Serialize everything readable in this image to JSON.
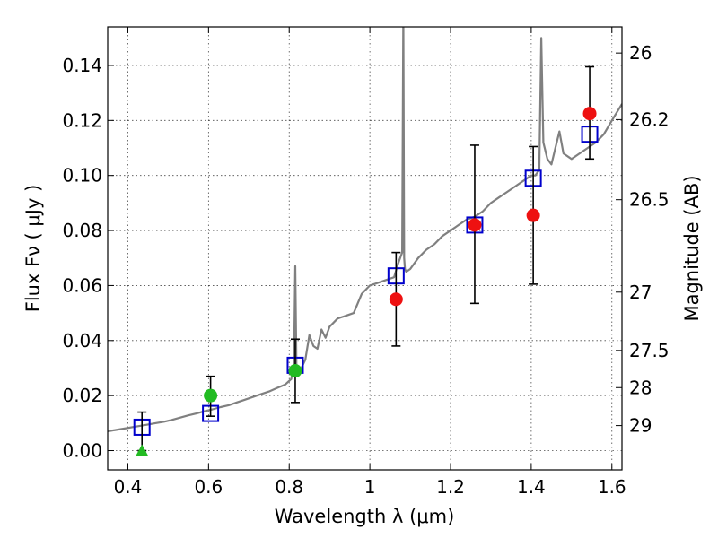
{
  "chart_data": {
    "type": "scatter",
    "title": "",
    "xlabel": "Wavelength  λ (μm)",
    "ylabel": "Flux  Fν  ( μJy )",
    "y2label": "Magnitude (AB)",
    "xlim": [
      0.35,
      1.625
    ],
    "ylim": [
      -0.007,
      0.154
    ],
    "grid": true,
    "x_ticks": [
      0.4,
      0.6,
      0.8,
      1.0,
      1.2,
      1.4,
      1.6
    ],
    "x_tick_labels": [
      "0.4",
      "0.6",
      "0.8",
      "1",
      "1.2",
      "1.4",
      "1.6"
    ],
    "y_ticks": [
      0.0,
      0.02,
      0.04,
      0.06,
      0.08,
      0.1,
      0.12,
      0.14
    ],
    "y_tick_labels": [
      "0.00",
      "0.02",
      "0.04",
      "0.06",
      "0.08",
      "0.10",
      "0.12",
      "0.14"
    ],
    "y2_ticks": [
      {
        "label": "26",
        "flux": 0.1445
      },
      {
        "label": "26.2",
        "flux": 0.1203
      },
      {
        "label": "26.5",
        "flux": 0.0912
      },
      {
        "label": "27",
        "flux": 0.0576
      },
      {
        "label": "27.5",
        "flux": 0.0364
      },
      {
        "label": "28",
        "flux": 0.0229
      },
      {
        "label": "29",
        "flux": 0.0091
      }
    ],
    "series": [
      {
        "name": "model spectrum",
        "kind": "line",
        "color": "#808080",
        "x": [
          0.35,
          0.37,
          0.39,
          0.41,
          0.43,
          0.45,
          0.47,
          0.49,
          0.51,
          0.53,
          0.55,
          0.57,
          0.59,
          0.61,
          0.63,
          0.65,
          0.67,
          0.69,
          0.71,
          0.73,
          0.75,
          0.77,
          0.79,
          0.805,
          0.812,
          0.815,
          0.818,
          0.822,
          0.83,
          0.84,
          0.85,
          0.86,
          0.87,
          0.88,
          0.89,
          0.9,
          0.92,
          0.94,
          0.96,
          0.98,
          1.0,
          1.02,
          1.04,
          1.06,
          1.07,
          1.08,
          1.083,
          1.085,
          1.087,
          1.09,
          1.1,
          1.12,
          1.14,
          1.16,
          1.18,
          1.2,
          1.22,
          1.24,
          1.26,
          1.28,
          1.3,
          1.32,
          1.34,
          1.36,
          1.38,
          1.4,
          1.41,
          1.42,
          1.425,
          1.43,
          1.44,
          1.45,
          1.46,
          1.47,
          1.48,
          1.5,
          1.52,
          1.54,
          1.56,
          1.58,
          1.6,
          1.625
        ],
        "values": [
          0.007,
          0.0075,
          0.008,
          0.0085,
          0.009,
          0.0095,
          0.01,
          0.0105,
          0.0112,
          0.012,
          0.0128,
          0.0135,
          0.0143,
          0.015,
          0.0158,
          0.0165,
          0.0175,
          0.0185,
          0.0195,
          0.0205,
          0.0215,
          0.0228,
          0.024,
          0.026,
          0.032,
          0.067,
          0.03,
          0.028,
          0.03,
          0.033,
          0.042,
          0.038,
          0.037,
          0.044,
          0.041,
          0.045,
          0.048,
          0.049,
          0.05,
          0.057,
          0.06,
          0.061,
          0.062,
          0.063,
          0.068,
          0.072,
          0.16,
          0.07,
          0.066,
          0.065,
          0.066,
          0.07,
          0.073,
          0.075,
          0.078,
          0.08,
          0.082,
          0.084,
          0.085,
          0.087,
          0.09,
          0.092,
          0.094,
          0.096,
          0.098,
          0.1,
          0.1,
          0.102,
          0.15,
          0.112,
          0.106,
          0.104,
          0.11,
          0.116,
          0.108,
          0.106,
          0.108,
          0.11,
          0.112,
          0.115,
          0.12,
          0.126
        ]
      },
      {
        "name": "model photometry",
        "kind": "open-square",
        "color": "#0000cc",
        "x": [
          0.435,
          0.605,
          0.815,
          1.065,
          1.26,
          1.405,
          1.545
        ],
        "values": [
          0.0085,
          0.0135,
          0.031,
          0.0635,
          0.082,
          0.099,
          0.115
        ]
      },
      {
        "name": "observed (red)",
        "kind": "filled-circle",
        "color": "#ee1111",
        "x": [
          1.065,
          1.26,
          1.405,
          1.545
        ],
        "values": [
          0.055,
          0.082,
          0.0855,
          0.1225
        ],
        "yerr_low": [
          0.038,
          0.0535,
          0.0605,
          0.106
        ],
        "yerr_high": [
          0.072,
          0.111,
          0.1105,
          0.1395
        ]
      },
      {
        "name": "observed (green)",
        "kind": "filled-circle",
        "color": "#22bb22",
        "x": [
          0.605,
          0.815
        ],
        "values": [
          0.02,
          0.029
        ],
        "yerr_low": [
          0.0125,
          0.0175
        ],
        "yerr_high": [
          0.027,
          0.0405
        ]
      },
      {
        "name": "upper limit",
        "kind": "triangle",
        "color": "#22bb22",
        "x": [
          0.435
        ],
        "values": [
          0.0
        ],
        "yerr_low": [
          0.0
        ],
        "yerr_high": [
          0.014
        ]
      }
    ]
  }
}
